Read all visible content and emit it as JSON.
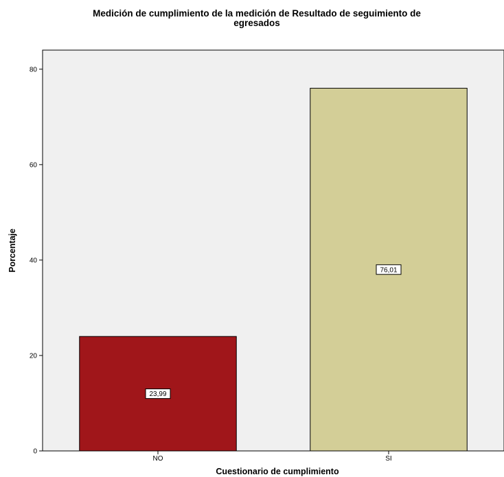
{
  "chart_data": {
    "type": "bar",
    "title_line1": "Medición de cumplimiento de la medición de  Resultado de seguimiento de",
    "title_line2": "egresados",
    "xlabel": "Cuestionario de cumplimiento",
    "ylabel": "Porcentaje",
    "categories": [
      "NO",
      "SI"
    ],
    "values": [
      23.99,
      76.01
    ],
    "data_labels": [
      "23,99",
      "76,01"
    ],
    "colors": [
      "#a0161a",
      "#d3ce97"
    ],
    "ylim": [
      0,
      84
    ],
    "yticks": [
      0,
      20,
      40,
      60,
      80
    ],
    "ytick_labels": [
      "0",
      "20",
      "40",
      "60",
      "80"
    ],
    "plot_background": "#f0f0f0",
    "grid": false,
    "legend": "none"
  }
}
